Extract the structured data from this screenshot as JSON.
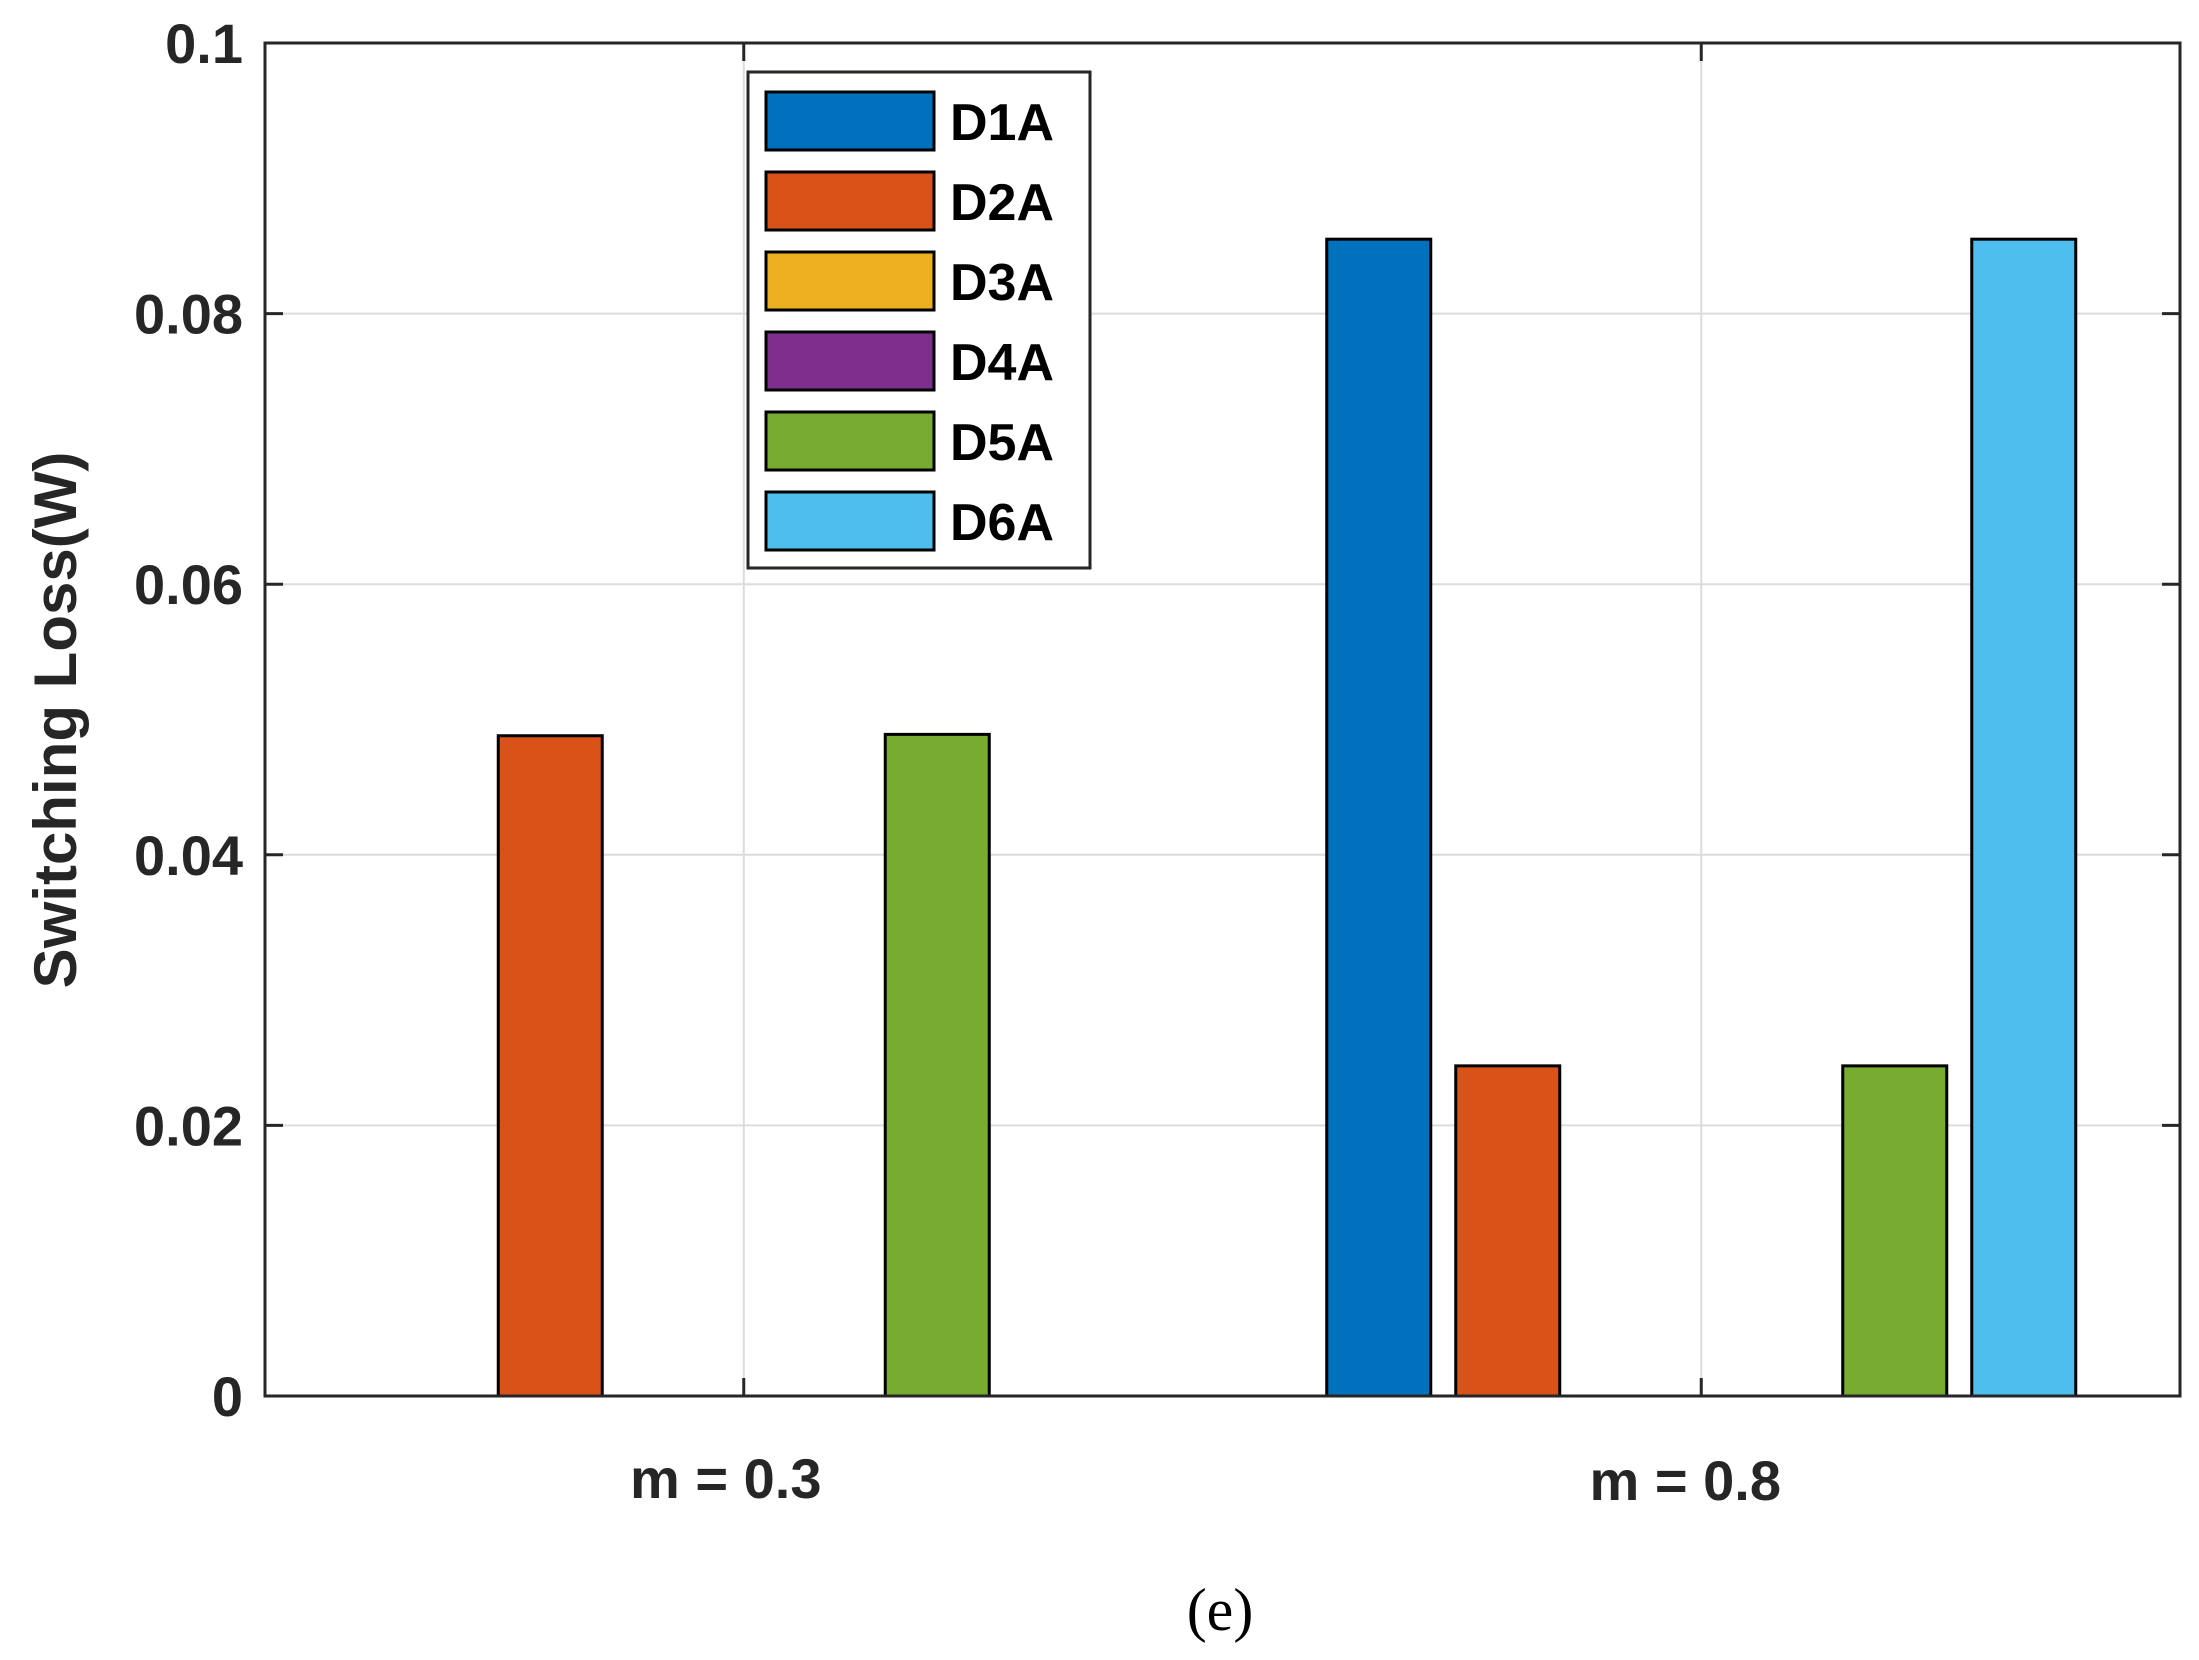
{
  "chart_data": {
    "type": "bar",
    "categories": [
      "m = 0.3",
      "m = 0.8"
    ],
    "series": [
      {
        "name": "D1A",
        "color": "#0072BD",
        "values": [
          0,
          0.0855
        ]
      },
      {
        "name": "D2A",
        "color": "#D95319",
        "values": [
          0.0488,
          0.0244
        ]
      },
      {
        "name": "D3A",
        "color": "#EDB120",
        "values": [
          0,
          0
        ]
      },
      {
        "name": "D4A",
        "color": "#7E2F8E",
        "values": [
          0,
          0
        ]
      },
      {
        "name": "D5A",
        "color": "#77AC30",
        "values": [
          0.0489,
          0.0244
        ]
      },
      {
        "name": "D6A",
        "color": "#4DBEEE",
        "values": [
          0,
          0.0855
        ]
      }
    ],
    "title": "",
    "xlabel": "",
    "ylabel": "Switching Loss(W)",
    "ylim": [
      0,
      0.1
    ],
    "yticks": [
      "0",
      "0.02",
      "0.04",
      "0.06",
      "0.08",
      "0.1"
    ],
    "grid": true,
    "legend_position": "top-left-center"
  },
  "caption": "(e)"
}
